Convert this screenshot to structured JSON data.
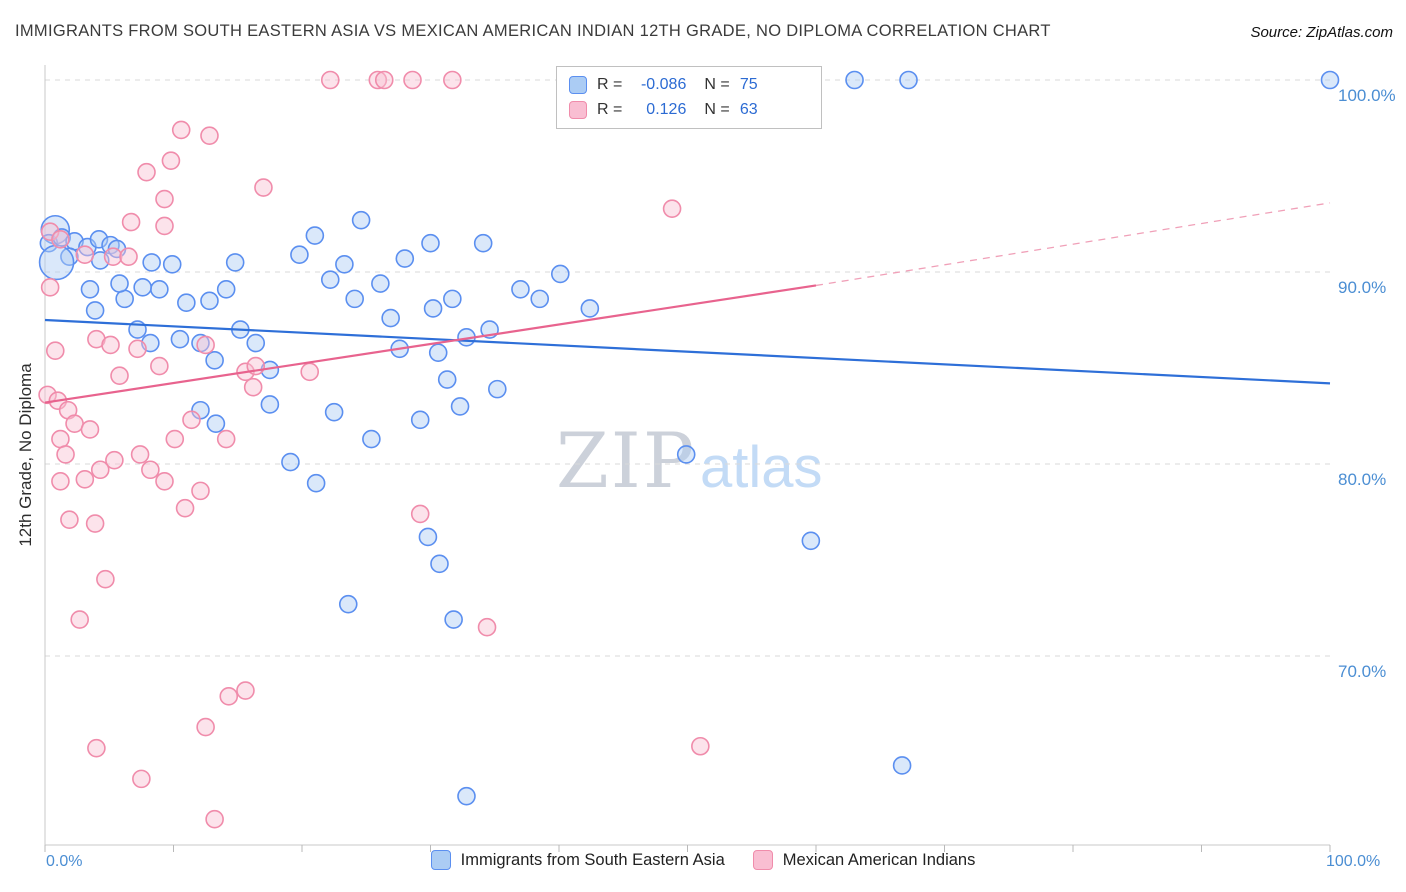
{
  "header": {
    "title": "IMMIGRANTS FROM SOUTH EASTERN ASIA VS MEXICAN AMERICAN INDIAN 12TH GRADE, NO DIPLOMA CORRELATION CHART",
    "source": "Source: ZipAtlas.com"
  },
  "watermark": {
    "zip": "ZIP",
    "atlas": "atlas"
  },
  "axes": {
    "y_label": "12th Grade, No Diploma",
    "y_ticks": [
      "100.0%",
      "90.0%",
      "80.0%",
      "70.0%"
    ],
    "x_left": "0.0%",
    "x_right": "100.0%"
  },
  "legend_box": {
    "rows": [
      {
        "series": "blue",
        "r_label": "R =",
        "r_value": "-0.086",
        "n_label": "N =",
        "n_value": "75"
      },
      {
        "series": "pink",
        "r_label": "R =",
        "r_value": "0.126",
        "n_label": "N =",
        "n_value": "63"
      }
    ]
  },
  "bottom_legend": {
    "items": [
      {
        "series": "blue",
        "label": "Immigrants from South Eastern Asia"
      },
      {
        "series": "pink",
        "label": "Mexican American Indians"
      }
    ]
  },
  "chart_data": {
    "type": "scatter",
    "title": "Immigrants from South Eastern Asia vs Mexican American Indian 12th Grade, No Diploma",
    "xlabel": "",
    "ylabel": "12th Grade, No Diploma",
    "xlim": [
      0,
      100
    ],
    "ylim": [
      60,
      101.5
    ],
    "gridlines": [
      100,
      90,
      80,
      70
    ],
    "x_ticks": [
      0,
      10,
      20,
      30,
      40,
      50,
      60,
      70,
      80,
      90,
      100
    ],
    "grid_on": true,
    "legend_position": "top-center",
    "series": [
      {
        "name": "Immigrants from South Eastern Asia",
        "R": -0.086,
        "N": 75,
        "stroke": "#5b8ff0",
        "fill": "#aecdf5",
        "trend_color": "#2e6fd8",
        "trend": {
          "x": [
            0,
            100
          ],
          "y": [
            87.5,
            84.2
          ],
          "solid_until_x": 100
        },
        "points": [
          [
            0.8,
            92.2,
            14
          ],
          [
            0.3,
            91.5
          ],
          [
            1.3,
            91.8
          ],
          [
            2.3,
            91.6
          ],
          [
            3.3,
            91.3
          ],
          [
            4.2,
            91.7
          ],
          [
            5.1,
            91.4
          ],
          [
            1.9,
            90.8
          ],
          [
            0.9,
            90.5,
            17
          ],
          [
            4.3,
            90.6
          ],
          [
            5.6,
            91.2
          ],
          [
            3.5,
            89.1
          ],
          [
            3.9,
            88.0
          ],
          [
            6.2,
            88.6
          ],
          [
            5.8,
            89.4
          ],
          [
            8.3,
            90.5
          ],
          [
            9.9,
            90.4
          ],
          [
            8.9,
            89.1
          ],
          [
            7.2,
            87.0
          ],
          [
            8.2,
            86.3
          ],
          [
            10.5,
            86.5
          ],
          [
            12.1,
            86.3
          ],
          [
            13.2,
            85.4
          ],
          [
            14.1,
            89.1
          ],
          [
            12.8,
            88.5
          ],
          [
            15.2,
            87.0
          ],
          [
            16.4,
            86.3
          ],
          [
            17.5,
            84.9
          ],
          [
            12.1,
            82.8
          ],
          [
            13.3,
            82.1
          ],
          [
            17.5,
            83.1
          ],
          [
            19.1,
            80.1
          ],
          [
            21.1,
            79.0
          ],
          [
            22.5,
            82.7
          ],
          [
            25.4,
            81.3
          ],
          [
            29.2,
            82.3
          ],
          [
            31.3,
            84.4
          ],
          [
            27.6,
            86.0
          ],
          [
            26.9,
            87.6
          ],
          [
            24.1,
            88.6
          ],
          [
            22.2,
            89.6
          ],
          [
            19.8,
            90.9
          ],
          [
            21.0,
            91.9
          ],
          [
            24.6,
            92.7
          ],
          [
            23.3,
            90.4
          ],
          [
            26.1,
            89.4
          ],
          [
            28.0,
            90.7
          ],
          [
            30.0,
            91.5
          ],
          [
            30.2,
            88.1
          ],
          [
            31.7,
            88.6
          ],
          [
            34.1,
            91.5
          ],
          [
            30.6,
            85.8
          ],
          [
            32.8,
            86.6
          ],
          [
            34.6,
            87.0
          ],
          [
            37.0,
            89.1
          ],
          [
            38.5,
            88.6
          ],
          [
            40.1,
            89.9
          ],
          [
            42.4,
            88.1
          ],
          [
            35.2,
            83.9
          ],
          [
            32.3,
            83.0
          ],
          [
            29.8,
            76.2
          ],
          [
            30.7,
            74.8
          ],
          [
            23.6,
            72.7
          ],
          [
            31.8,
            71.9
          ],
          [
            32.8,
            62.7
          ],
          [
            49.9,
            80.5
          ],
          [
            59.6,
            76.0
          ],
          [
            66.7,
            64.3
          ],
          [
            63.0,
            100.0
          ],
          [
            67.2,
            100.0
          ],
          [
            100.0,
            100.0
          ],
          [
            43.0,
            100.0
          ],
          [
            7.6,
            89.2
          ],
          [
            11.0,
            88.4
          ],
          [
            14.8,
            90.5
          ]
        ]
      },
      {
        "name": "Mexican American Indians",
        "R": 0.126,
        "N": 63,
        "stroke": "#f08cab",
        "fill": "#f9c2d3",
        "trend_color": "#e8638e",
        "trend": {
          "x": [
            0,
            60,
            100
          ],
          "y": [
            83.2,
            89.3,
            93.6
          ],
          "solid_until_x": 60
        },
        "points": [
          [
            22.2,
            100.0
          ],
          [
            25.9,
            100.0
          ],
          [
            26.4,
            100.0
          ],
          [
            28.6,
            100.0
          ],
          [
            31.7,
            100.0
          ],
          [
            10.6,
            97.4
          ],
          [
            12.8,
            97.1
          ],
          [
            7.9,
            95.2
          ],
          [
            9.8,
            95.8
          ],
          [
            17.0,
            94.4
          ],
          [
            9.3,
            93.8
          ],
          [
            9.3,
            92.4
          ],
          [
            6.7,
            92.6
          ],
          [
            48.8,
            93.3
          ],
          [
            0.4,
            92.1
          ],
          [
            1.2,
            91.7
          ],
          [
            3.1,
            90.9
          ],
          [
            5.3,
            90.8
          ],
          [
            6.5,
            90.8
          ],
          [
            0.4,
            89.2
          ],
          [
            4.0,
            86.5
          ],
          [
            0.8,
            85.9
          ],
          [
            7.2,
            86.0
          ],
          [
            5.1,
            86.2
          ],
          [
            8.9,
            85.1
          ],
          [
            5.8,
            84.6
          ],
          [
            0.2,
            83.6
          ],
          [
            1.0,
            83.3
          ],
          [
            1.8,
            82.8
          ],
          [
            2.3,
            82.1
          ],
          [
            3.5,
            81.8
          ],
          [
            1.2,
            81.3
          ],
          [
            1.6,
            80.5
          ],
          [
            4.3,
            79.7
          ],
          [
            5.4,
            80.2
          ],
          [
            3.1,
            79.2
          ],
          [
            1.2,
            79.1
          ],
          [
            1.9,
            77.1
          ],
          [
            3.9,
            76.9
          ],
          [
            4.7,
            74.0
          ],
          [
            2.7,
            71.9
          ],
          [
            7.4,
            80.5
          ],
          [
            8.2,
            79.7
          ],
          [
            10.1,
            81.3
          ],
          [
            9.3,
            79.1
          ],
          [
            12.1,
            78.6
          ],
          [
            10.9,
            77.7
          ],
          [
            12.5,
            86.2
          ],
          [
            15.6,
            84.8
          ],
          [
            16.2,
            84.0
          ],
          [
            16.4,
            85.1
          ],
          [
            20.6,
            84.8
          ],
          [
            14.3,
            67.9
          ],
          [
            15.6,
            68.2
          ],
          [
            12.5,
            66.3
          ],
          [
            7.5,
            63.6
          ],
          [
            13.2,
            61.5
          ],
          [
            4.0,
            65.2
          ],
          [
            51.0,
            65.3
          ],
          [
            34.4,
            71.5
          ],
          [
            29.2,
            77.4
          ],
          [
            11.4,
            82.3
          ],
          [
            14.1,
            81.3
          ]
        ]
      }
    ]
  }
}
